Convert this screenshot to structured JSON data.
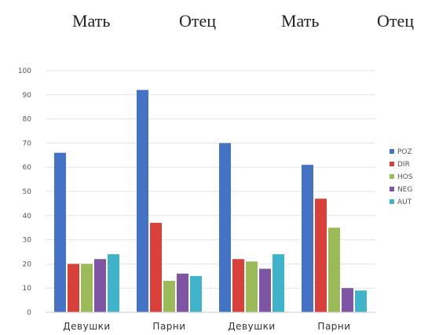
{
  "header": {
    "labels": [
      "Мать",
      "Отец",
      "Мать",
      "Отец"
    ]
  },
  "chart_data": {
    "type": "bar",
    "categories": [
      "Девушки",
      "Парни",
      "Девушки",
      "Парни"
    ],
    "ylim": [
      0,
      100
    ],
    "yticks": [
      0,
      10,
      20,
      30,
      40,
      50,
      60,
      70,
      80,
      90,
      100
    ],
    "grid": true,
    "legend_position": "right",
    "series": [
      {
        "name": "POZ",
        "color": "#4472c4",
        "values": [
          66,
          92,
          70,
          61
        ]
      },
      {
        "name": "DIR",
        "color": "#d9403a",
        "values": [
          20,
          37,
          22,
          47
        ]
      },
      {
        "name": "HOS",
        "color": "#9bbb59",
        "values": [
          20,
          13,
          21,
          35
        ]
      },
      {
        "name": "NEG",
        "color": "#7e55a5",
        "values": [
          22,
          16,
          18,
          10
        ]
      },
      {
        "name": "AUT",
        "color": "#3fb3c9",
        "values": [
          24,
          15,
          24,
          9
        ]
      }
    ]
  }
}
